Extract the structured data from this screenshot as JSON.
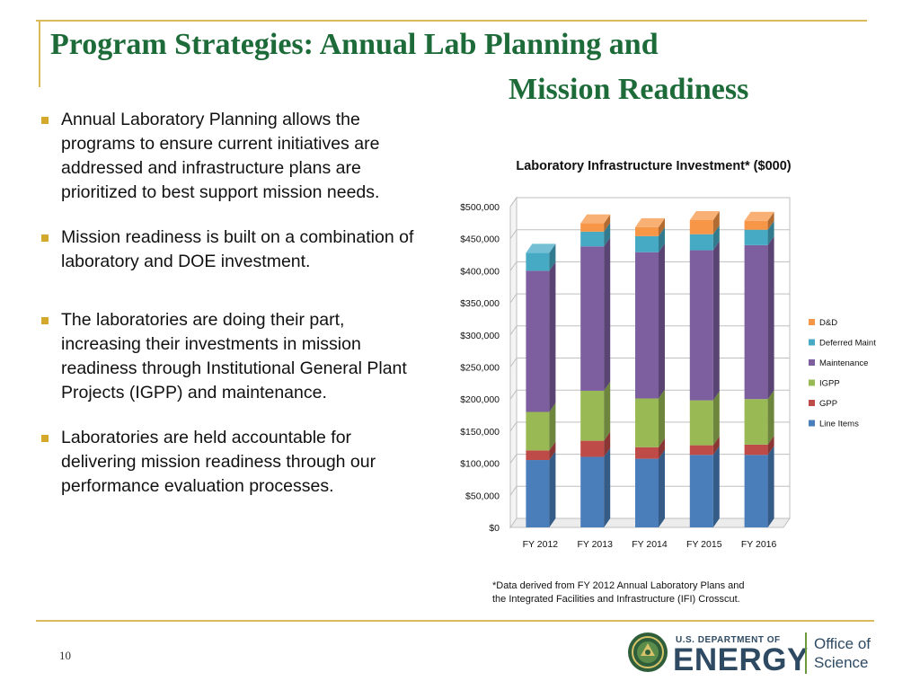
{
  "slide": {
    "title_line1": "Program Strategies: Annual Lab Planning and",
    "title_line2": "Mission Readiness",
    "bullets": [
      "Annual Laboratory Planning allows the programs to ensure current initiatives are addressed and infrastructure plans are prioritized to best support mission needs.",
      "Mission readiness is built on a combination of laboratory and DOE investment.",
      "The laboratories are doing their part, increasing their investments in mission readiness through Institutional General Plant Projects (IGPP) and maintenance.",
      "Laboratories are held accountable for delivering mission readiness through our performance evaluation processes."
    ],
    "footnote_line1": "*Data derived from FY 2012 Annual Laboratory Plans and",
    "footnote_line2": "the Integrated Facilities and Infrastructure (IFI) Crosscut.",
    "page_number": "10",
    "logo_dept": "U.S. DEPARTMENT OF",
    "logo_energy": "ENERGY",
    "office_line1": "Office of",
    "office_line2": "Science"
  },
  "chart_data": {
    "type": "bar",
    "stacked": true,
    "three_d": true,
    "title": "Laboratory Infrastructure Investment* ($000)",
    "categories": [
      "FY 2012",
      "FY 2013",
      "FY 2014",
      "FY 2015",
      "FY 2016"
    ],
    "ylim": [
      0,
      500000
    ],
    "yticks": [
      0,
      50000,
      100000,
      150000,
      200000,
      250000,
      300000,
      350000,
      400000,
      450000,
      500000
    ],
    "ytick_labels": [
      "$0",
      "$50,000",
      "$100,000",
      "$150,000",
      "$200,000",
      "$250,000",
      "$300,000",
      "$350,000",
      "$400,000",
      "$450,000",
      "$500,000"
    ],
    "legend_position": "right",
    "grid": true,
    "series": [
      {
        "name": "Line Items",
        "color": "#4a7ebb",
        "values": [
          105000,
          110000,
          107000,
          113000,
          113000
        ]
      },
      {
        "name": "GPP",
        "color": "#be4b48",
        "values": [
          15000,
          25000,
          18000,
          15000,
          16000
        ]
      },
      {
        "name": "IGPP",
        "color": "#98b954",
        "values": [
          60000,
          78000,
          76000,
          70000,
          71000
        ]
      },
      {
        "name": "Maintenance",
        "color": "#7d5fa0",
        "values": [
          220000,
          225000,
          228000,
          234000,
          240000
        ]
      },
      {
        "name": "Deferred Maint",
        "color": "#46aac5",
        "values": [
          28000,
          23000,
          25000,
          25000,
          24000
        ]
      },
      {
        "name": "D&D",
        "color": "#f79646",
        "values": [
          0,
          13000,
          14000,
          22000,
          14000
        ]
      }
    ]
  }
}
